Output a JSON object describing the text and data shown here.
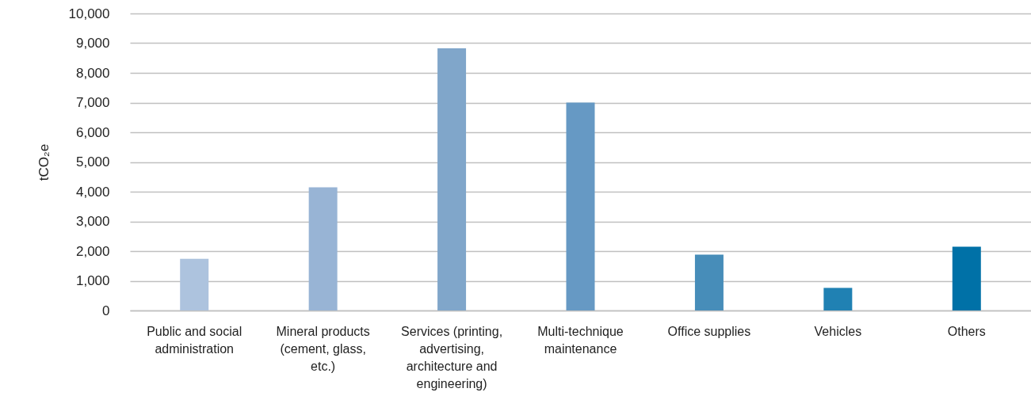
{
  "chart_data": {
    "type": "bar",
    "ylabel": "tCO₂e",
    "categories": [
      "Public and social administration",
      "Mineral products (cement, glass, etc.)",
      "Services (printing, advertising, architecture and engineering)",
      "Multi-technique maintenance",
      "Office supplies",
      "Vehicles",
      "Others"
    ],
    "values": [
      1740,
      4150,
      8830,
      7000,
      1880,
      760,
      2150
    ],
    "colors": [
      "#adc3de",
      "#98b4d5",
      "#80a6ca",
      "#6699c4",
      "#478db9",
      "#2081b3",
      "#0071a7"
    ],
    "ylim": [
      0,
      10000
    ],
    "yticks": [
      0,
      {
        "value": 1000,
        "label": "1,000"
      },
      {
        "value": 2000,
        "label": "2,000"
      },
      {
        "value": 3000,
        "label": "3,000"
      },
      {
        "value": 4000,
        "label": "4,000"
      },
      {
        "value": 5000,
        "label": "5,000"
      },
      {
        "value": 6000,
        "label": "6,000"
      },
      {
        "value": 7000,
        "label": "7,000"
      },
      {
        "value": 8000,
        "label": "8,000"
      },
      {
        "value": 9000,
        "label": "9,000"
      },
      {
        "value": 10000,
        "label": "10,000"
      }
    ],
    "grid": "y"
  }
}
